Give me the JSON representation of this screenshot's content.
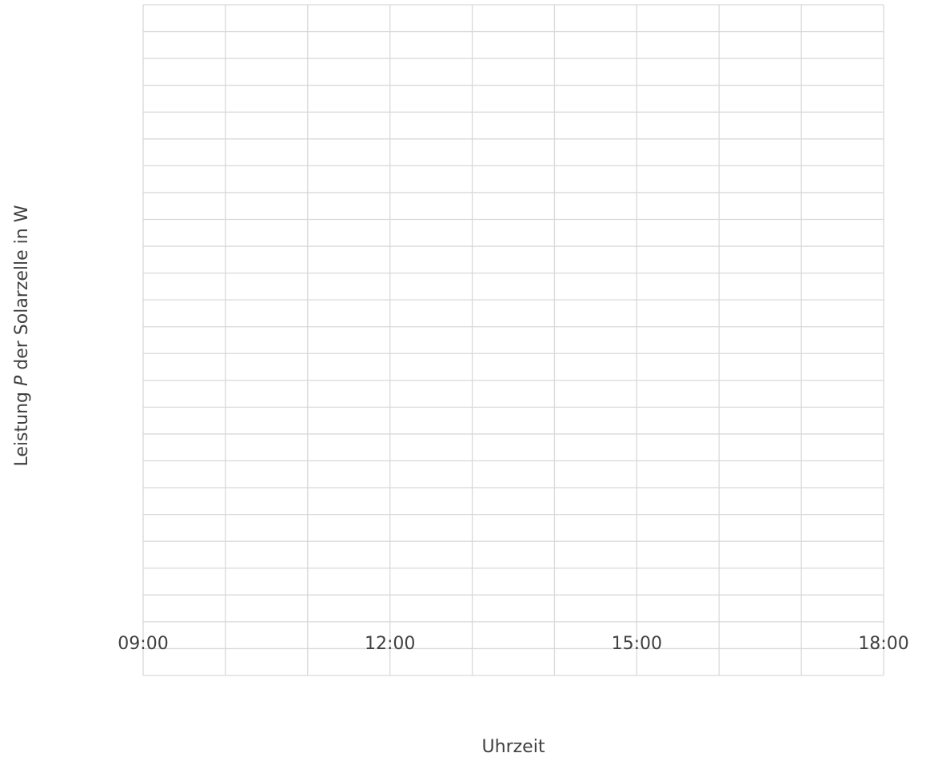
{
  "chart_data": {
    "type": "line",
    "xlabel": "Uhrzeit",
    "ylabel_parts": [
      "Leistung ",
      "P",
      " der Solarzelle in W"
    ],
    "xlim": [
      9,
      18
    ],
    "xticks": [
      {
        "value": 9,
        "label": "09:00"
      },
      {
        "value": 12,
        "label": "12:00"
      },
      {
        "value": 15,
        "label": "15:00"
      },
      {
        "value": 18,
        "label": "18:00"
      }
    ],
    "xminorgrid": [
      10,
      11,
      13,
      14,
      16,
      17
    ],
    "ylim": [
      0,
      25
    ],
    "ygrid": [
      0,
      1,
      2,
      3,
      4,
      5,
      6,
      7,
      8,
      9,
      10,
      11,
      12,
      13,
      14,
      15,
      16,
      17,
      18,
      19,
      20,
      21,
      22,
      23,
      24,
      25
    ],
    "grid": true,
    "series": []
  }
}
